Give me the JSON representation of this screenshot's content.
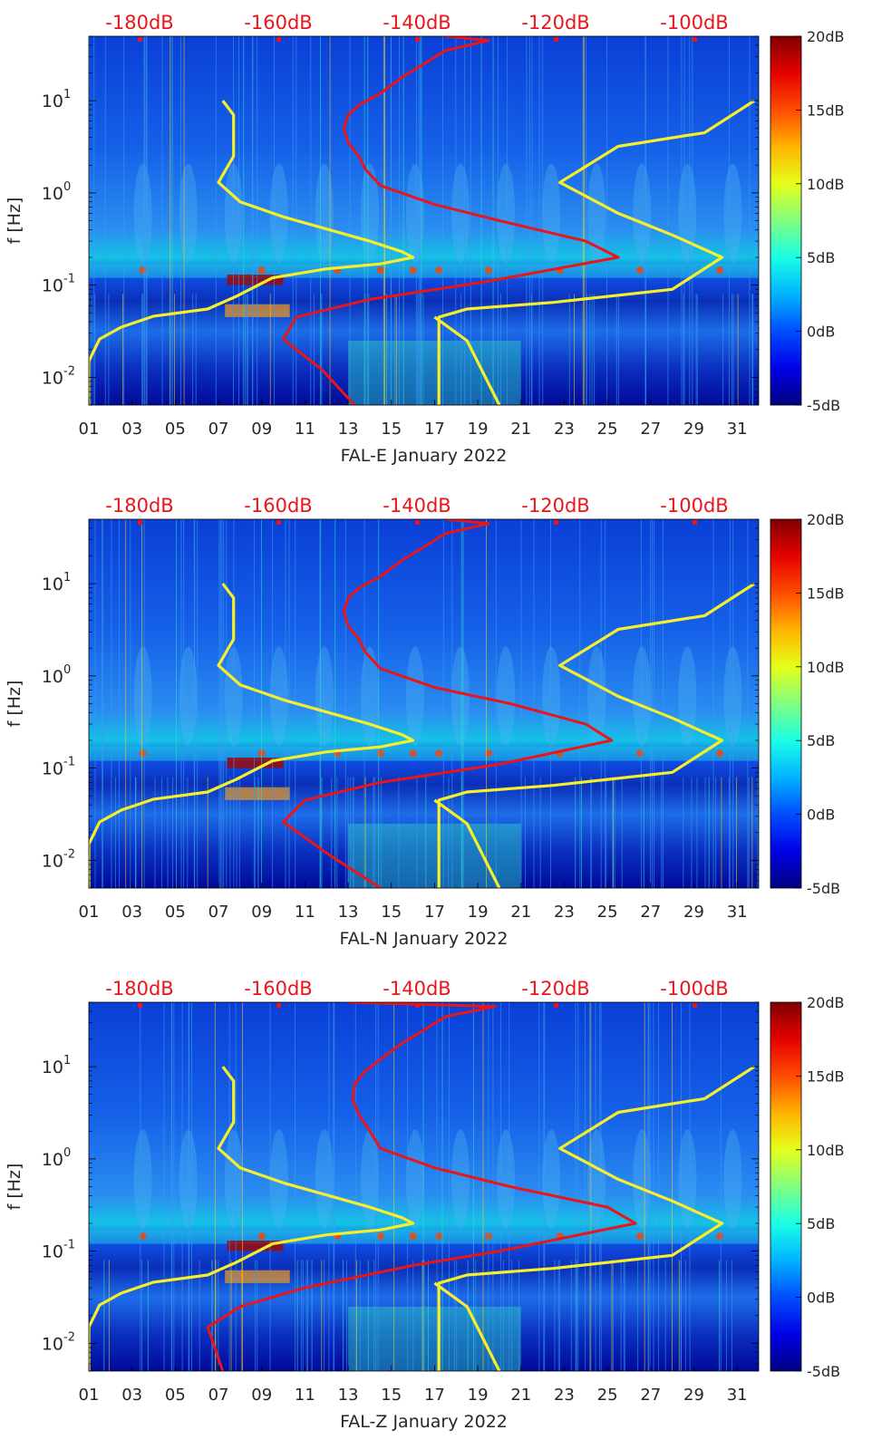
{
  "chart_data": [
    {
      "type": "heatmap",
      "xlabel": "FAL-E January 2022",
      "ylabel": "f [Hz]",
      "x_ticks": [
        "01",
        "03",
        "05",
        "07",
        "09",
        "11",
        "13",
        "15",
        "17",
        "19",
        "21",
        "23",
        "25",
        "27",
        "29",
        "31"
      ],
      "y_ticks": [
        "10^-2",
        "10^-1",
        "10^0",
        "10^1"
      ],
      "top_axis_ticks": [
        "-180dB",
        "-160dB",
        "-140dB",
        "-120dB",
        "-100dB"
      ],
      "colorbar_ticks": [
        "20dB",
        "15dB",
        "10dB",
        "5dB",
        "0dB",
        "-5dB"
      ],
      "xlim": [
        1,
        32
      ],
      "ylim": [
        0.005,
        50
      ],
      "y_scale": "log",
      "clim": [
        -5,
        20
      ],
      "colormap": "jet",
      "colors": {
        "psd_curve": "#e8161b",
        "noise_model": "#f6ef2c"
      },
      "series": [
        {
          "points": [
            [
              1.0,
              0.005
            ],
            [
              1.0,
              0.015
            ],
            [
              1.5,
              0.026
            ],
            [
              2.5,
              0.035
            ],
            [
              4.0,
              0.046
            ],
            [
              6.5,
              0.055
            ],
            [
              7.8,
              0.075
            ],
            [
              9.5,
              0.12
            ],
            [
              12.0,
              0.15
            ],
            [
              14.5,
              0.17
            ],
            [
              16.0,
              0.2
            ],
            [
              15.5,
              0.23
            ],
            [
              14.0,
              0.3
            ],
            [
              10.0,
              0.55
            ],
            [
              8.0,
              0.8
            ],
            [
              7.0,
              1.3
            ],
            [
              7.7,
              2.5
            ],
            [
              7.7,
              4.5
            ],
            [
              7.7,
              7.0
            ],
            [
              7.2,
              10.0
            ]
          ]
        },
        {
          "points": [
            [
              17.2,
              0.005
            ],
            [
              17.2,
              0.045
            ],
            [
              18.5,
              0.055
            ],
            [
              22.5,
              0.065
            ],
            [
              28.0,
              0.09
            ],
            [
              30.3,
              0.2
            ],
            [
              28.0,
              0.35
            ],
            [
              25.5,
              0.6
            ],
            [
              22.8,
              1.3
            ],
            [
              25.5,
              3.2
            ],
            [
              29.5,
              4.5
            ],
            [
              31.8,
              10.0
            ]
          ]
        },
        {
          "points": [
            [
              17.0,
              0.045
            ],
            [
              18.5,
              0.025
            ],
            [
              20.0,
              0.005
            ]
          ]
        },
        {
          "points": [
            [
              13.3,
              0.005
            ],
            [
              11.8,
              0.012
            ],
            [
              10.0,
              0.026
            ],
            [
              10.6,
              0.045
            ],
            [
              14.0,
              0.07
            ],
            [
              19.5,
              0.11
            ],
            [
              25.5,
              0.2
            ],
            [
              24.0,
              0.3
            ],
            [
              20.0,
              0.5
            ],
            [
              17.0,
              0.75
            ],
            [
              14.5,
              1.2
            ],
            [
              13.8,
              1.8
            ],
            [
              13.5,
              2.5
            ],
            [
              13.0,
              3.5
            ],
            [
              12.8,
              5.0
            ],
            [
              13.0,
              7.0
            ],
            [
              13.5,
              9.0
            ],
            [
              14.5,
              12.0
            ],
            [
              15.5,
              18.0
            ],
            [
              16.5,
              25.0
            ],
            [
              17.5,
              35.0
            ],
            [
              19.5,
              45.0
            ],
            [
              17.5,
              50.0
            ]
          ]
        }
      ]
    },
    {
      "type": "heatmap",
      "xlabel": "FAL-N January 2022",
      "ylabel": "f [Hz]",
      "x_ticks": [
        "01",
        "03",
        "05",
        "07",
        "09",
        "11",
        "13",
        "15",
        "17",
        "19",
        "21",
        "23",
        "25",
        "27",
        "29",
        "31"
      ],
      "y_ticks": [
        "10^-2",
        "10^-1",
        "10^0",
        "10^1"
      ],
      "top_axis_ticks": [
        "-180dB",
        "-160dB",
        "-140dB",
        "-120dB",
        "-100dB"
      ],
      "colorbar_ticks": [
        "20dB",
        "15dB",
        "10dB",
        "5dB",
        "0dB",
        "-5dB"
      ],
      "xlim": [
        1,
        32
      ],
      "ylim": [
        0.005,
        50
      ],
      "y_scale": "log",
      "clim": [
        -5,
        20
      ],
      "colormap": "jet",
      "colors": {
        "psd_curve": "#e8161b",
        "noise_model": "#f6ef2c"
      },
      "series": [
        {
          "points": [
            [
              1.0,
              0.005
            ],
            [
              1.0,
              0.015
            ],
            [
              1.5,
              0.026
            ],
            [
              2.5,
              0.035
            ],
            [
              4.0,
              0.046
            ],
            [
              6.5,
              0.055
            ],
            [
              7.8,
              0.075
            ],
            [
              9.5,
              0.12
            ],
            [
              12.0,
              0.15
            ],
            [
              14.5,
              0.17
            ],
            [
              16.0,
              0.2
            ],
            [
              15.5,
              0.23
            ],
            [
              14.0,
              0.3
            ],
            [
              10.0,
              0.55
            ],
            [
              8.0,
              0.8
            ],
            [
              7.0,
              1.3
            ],
            [
              7.7,
              2.5
            ],
            [
              7.7,
              4.5
            ],
            [
              7.7,
              7.0
            ],
            [
              7.2,
              10.0
            ]
          ]
        },
        {
          "points": [
            [
              17.2,
              0.005
            ],
            [
              17.2,
              0.045
            ],
            [
              18.5,
              0.055
            ],
            [
              22.5,
              0.065
            ],
            [
              28.0,
              0.09
            ],
            [
              30.3,
              0.2
            ],
            [
              28.0,
              0.35
            ],
            [
              25.5,
              0.6
            ],
            [
              22.8,
              1.3
            ],
            [
              25.5,
              3.2
            ],
            [
              29.5,
              4.5
            ],
            [
              31.8,
              10.0
            ]
          ]
        },
        {
          "points": [
            [
              17.0,
              0.045
            ],
            [
              18.5,
              0.025
            ],
            [
              20.0,
              0.005
            ]
          ]
        },
        {
          "points": [
            [
              14.5,
              0.005
            ],
            [
              12.0,
              0.012
            ],
            [
              10.0,
              0.026
            ],
            [
              11.0,
              0.045
            ],
            [
              14.5,
              0.07
            ],
            [
              20.0,
              0.11
            ],
            [
              25.2,
              0.2
            ],
            [
              24.0,
              0.3
            ],
            [
              20.5,
              0.5
            ],
            [
              17.0,
              0.75
            ],
            [
              14.5,
              1.2
            ],
            [
              13.8,
              1.8
            ],
            [
              13.5,
              2.5
            ],
            [
              13.0,
              3.5
            ],
            [
              12.8,
              5.0
            ],
            [
              13.0,
              7.0
            ],
            [
              13.5,
              9.0
            ],
            [
              14.5,
              12.0
            ],
            [
              15.5,
              18.0
            ],
            [
              16.5,
              25.0
            ],
            [
              17.5,
              35.0
            ],
            [
              19.5,
              45.0
            ],
            [
              17.5,
              50.0
            ]
          ]
        }
      ]
    },
    {
      "type": "heatmap",
      "xlabel": "FAL-Z January 2022",
      "ylabel": "f [Hz]",
      "x_ticks": [
        "01",
        "03",
        "05",
        "07",
        "09",
        "11",
        "13",
        "15",
        "17",
        "19",
        "21",
        "23",
        "25",
        "27",
        "29",
        "31"
      ],
      "y_ticks": [
        "10^-2",
        "10^-1",
        "10^0",
        "10^1"
      ],
      "top_axis_ticks": [
        "-180dB",
        "-160dB",
        "-140dB",
        "-120dB",
        "-100dB"
      ],
      "colorbar_ticks": [
        "20dB",
        "15dB",
        "10dB",
        "5dB",
        "0dB",
        "-5dB"
      ],
      "xlim": [
        1,
        32
      ],
      "ylim": [
        0.005,
        50
      ],
      "y_scale": "log",
      "clim": [
        -5,
        20
      ],
      "colormap": "jet",
      "colors": {
        "psd_curve": "#e8161b",
        "noise_model": "#f6ef2c"
      },
      "series": [
        {
          "points": [
            [
              1.0,
              0.005
            ],
            [
              1.0,
              0.015
            ],
            [
              1.5,
              0.026
            ],
            [
              2.5,
              0.035
            ],
            [
              4.0,
              0.046
            ],
            [
              6.5,
              0.055
            ],
            [
              7.8,
              0.075
            ],
            [
              9.5,
              0.12
            ],
            [
              12.0,
              0.15
            ],
            [
              14.5,
              0.17
            ],
            [
              16.0,
              0.2
            ],
            [
              15.5,
              0.23
            ],
            [
              14.0,
              0.3
            ],
            [
              10.0,
              0.55
            ],
            [
              8.0,
              0.8
            ],
            [
              7.0,
              1.3
            ],
            [
              7.7,
              2.5
            ],
            [
              7.7,
              4.5
            ],
            [
              7.7,
              7.0
            ],
            [
              7.2,
              10.0
            ]
          ]
        },
        {
          "points": [
            [
              17.2,
              0.005
            ],
            [
              17.2,
              0.045
            ],
            [
              18.5,
              0.055
            ],
            [
              22.5,
              0.065
            ],
            [
              28.0,
              0.09
            ],
            [
              30.3,
              0.2
            ],
            [
              28.0,
              0.35
            ],
            [
              25.5,
              0.6
            ],
            [
              22.8,
              1.3
            ],
            [
              25.5,
              3.2
            ],
            [
              29.5,
              4.5
            ],
            [
              31.8,
              10.0
            ]
          ]
        },
        {
          "points": [
            [
              17.0,
              0.045
            ],
            [
              18.5,
              0.025
            ],
            [
              20.0,
              0.005
            ]
          ]
        },
        {
          "points": [
            [
              7.2,
              0.005
            ],
            [
              6.5,
              0.015
            ],
            [
              8.0,
              0.025
            ],
            [
              11.0,
              0.04
            ],
            [
              16.0,
              0.07
            ],
            [
              20.0,
              0.1
            ],
            [
              26.3,
              0.2
            ],
            [
              25.0,
              0.3
            ],
            [
              20.5,
              0.5
            ],
            [
              17.0,
              0.8
            ],
            [
              14.5,
              1.3
            ],
            [
              14.0,
              2.0
            ],
            [
              13.5,
              3.0
            ],
            [
              13.2,
              4.5
            ],
            [
              13.3,
              6.5
            ],
            [
              13.8,
              9.0
            ],
            [
              14.5,
              12.0
            ],
            [
              15.5,
              18.0
            ],
            [
              16.5,
              25.0
            ],
            [
              17.5,
              35.0
            ],
            [
              19.8,
              45.0
            ],
            [
              13.0,
              50.0
            ]
          ]
        }
      ]
    }
  ]
}
